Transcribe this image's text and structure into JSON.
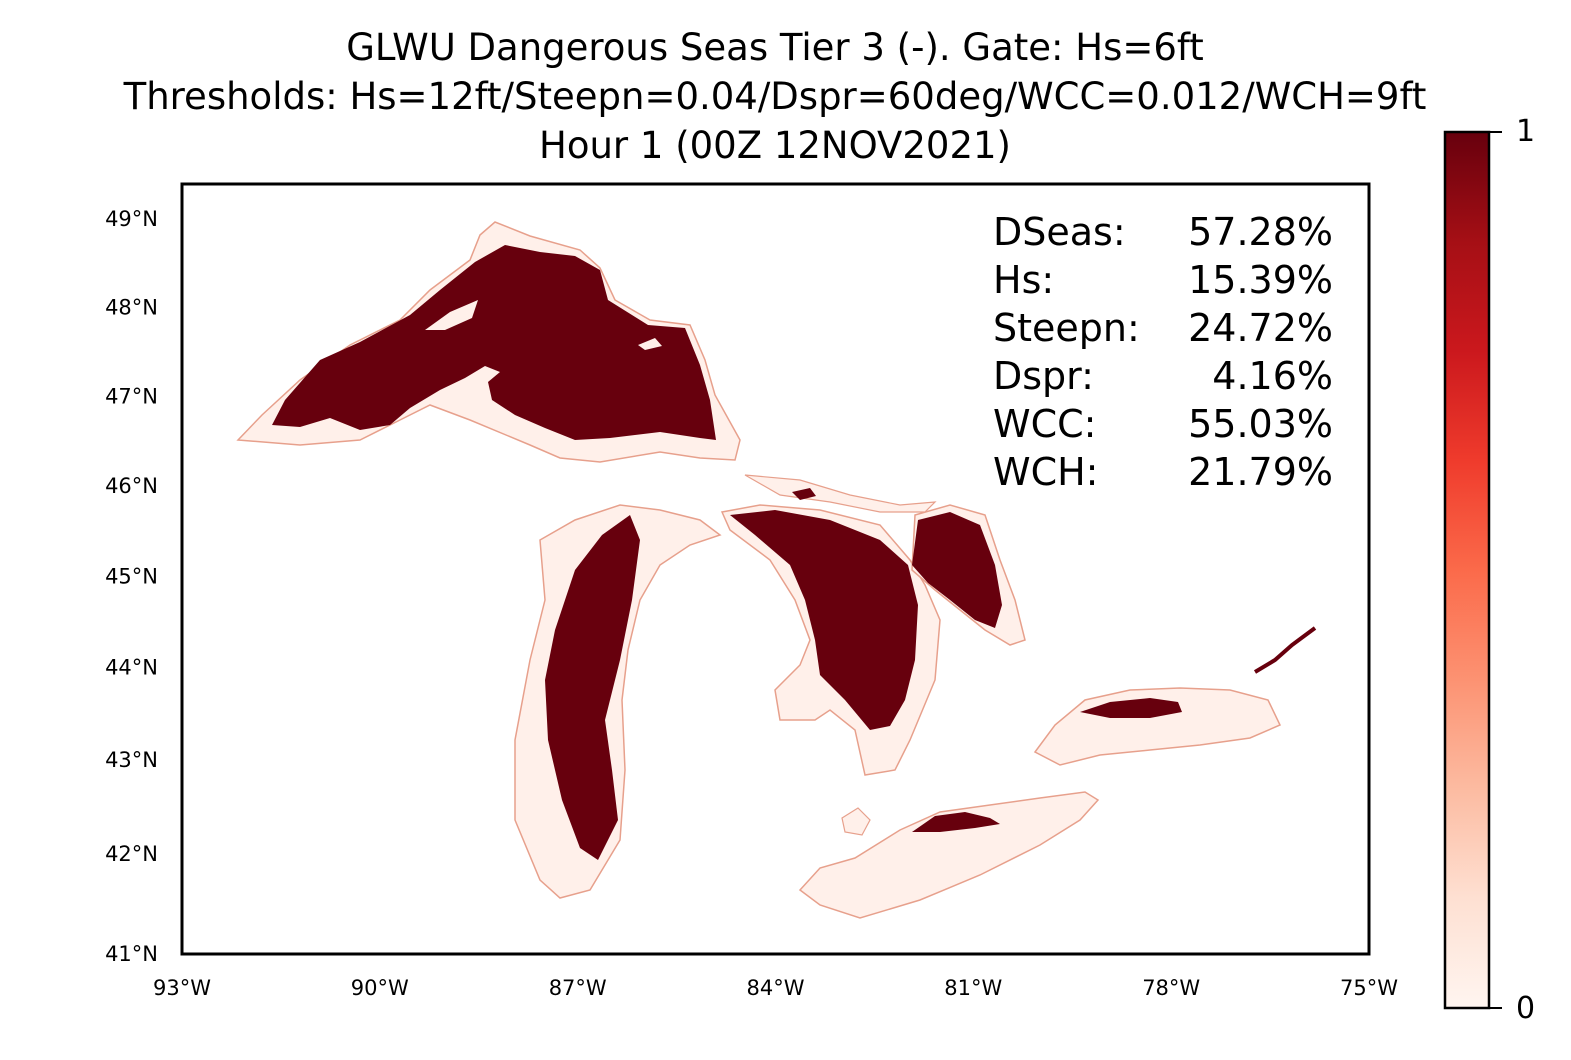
{
  "title": {
    "line1": "GLWU Dangerous Seas Tier 3 (-). Gate: Hs=6ft",
    "line2": "Thresholds: Hs=12ft/Steepn=0.04/Dspr=60deg/WCC=0.012/WCH=9ft",
    "line3": "Hour 1 (00Z 12NOV2021)"
  },
  "axes": {
    "lon_ticks": [
      "93°W",
      "90°W",
      "87°W",
      "84°W",
      "81°W",
      "78°W",
      "75°W"
    ],
    "lat_ticks": [
      "49°N",
      "48°N",
      "47°N",
      "46°N",
      "45°N",
      "44°N",
      "43°N",
      "42°N",
      "41°N"
    ],
    "lon_range": [
      -93,
      -75
    ],
    "lat_range": [
      41,
      49.4
    ]
  },
  "stats": [
    {
      "label": "DSeas:",
      "value": "57.28%"
    },
    {
      "label": "Hs:",
      "value": "15.39%"
    },
    {
      "label": "Steepn:",
      "value": "24.72%"
    },
    {
      "label": "Dspr:",
      "value": "4.16%"
    },
    {
      "label": "WCC:",
      "value": "55.03%"
    },
    {
      "label": "WCH:",
      "value": "21.79%"
    }
  ],
  "colorbar": {
    "min_label": "0",
    "max_label": "1",
    "color_low": "#fff5f0",
    "color_high": "#67000d"
  },
  "colors": {
    "danger": "#67000d",
    "safe": "#fff0ea"
  },
  "lakes": [
    "Lake Superior",
    "Lake Michigan",
    "Lake Huron",
    "Georgian Bay",
    "Lake Erie",
    "Lake Ontario",
    "Lake St. Clair"
  ]
}
